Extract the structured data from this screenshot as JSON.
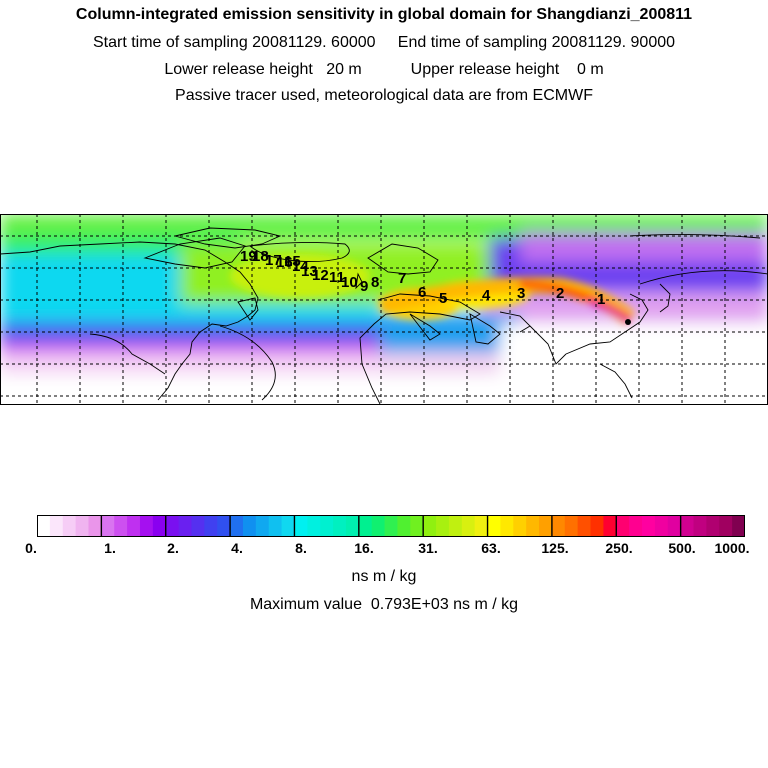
{
  "header": {
    "title": "Column-integrated emission sensitivity in global domain for Shangdianzi_200811",
    "line2_a": "Start time of sampling 20081129. 60000",
    "line2_b": "End time of sampling 20081129. 90000",
    "line3_a": "Lower release height   20 m",
    "line3_b": "Upper release height    0 m",
    "line4": "Passive tracer used, meteorological data are from ECMWF"
  },
  "map": {
    "trajectory_labels": [
      "1",
      "2",
      "3",
      "4",
      "5",
      "6",
      "7",
      "8",
      "9",
      "10",
      "11",
      "12",
      "13",
      "14",
      "15",
      "16",
      "17",
      "18",
      "19"
    ]
  },
  "colorbar": {
    "tick_labels": [
      "0.",
      "1.",
      "2.",
      "4.",
      "8.",
      "16.",
      "31.",
      "63.",
      "125.",
      "250.",
      "500.",
      "1000."
    ],
    "colors": [
      "#ffffff",
      "#fbe6fb",
      "#f6cdf6",
      "#f0b4f0",
      "#ea95ea",
      "#d974f0",
      "#cd50f0",
      "#bf30f0",
      "#a510f0",
      "#8a00f0",
      "#7a10f0",
      "#6a20f0",
      "#5530f0",
      "#4040f0",
      "#3050f0",
      "#2070f0",
      "#1090f0",
      "#10a8f0",
      "#10c0f0",
      "#10d8f0",
      "#00f0f0",
      "#00f0e0",
      "#00f0d0",
      "#00f0c0",
      "#00f0b0",
      "#00f090",
      "#10f070",
      "#30f050",
      "#50f030",
      "#70f020",
      "#90f010",
      "#a8f010",
      "#c0f010",
      "#d8f010",
      "#f0f010",
      "#ffff00",
      "#ffe800",
      "#ffd000",
      "#ffb800",
      "#ffa000",
      "#ff8800",
      "#ff7000",
      "#ff5000",
      "#ff3000",
      "#ff0030",
      "#ff0070",
      "#ff0090",
      "#ff00a0",
      "#f000a0",
      "#e000a0",
      "#d00090",
      "#c00080",
      "#b00070",
      "#a00060",
      "#800050"
    ],
    "units": "ns m / kg",
    "maximum": "Maximum value  0.793E+03 ns m / kg"
  }
}
